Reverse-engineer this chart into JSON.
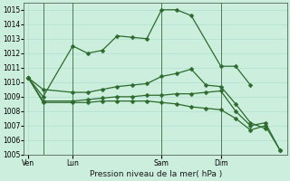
{
  "title": "Pression niveau de la mer( hPa )",
  "bg_color": "#cceedd",
  "grid_color": "#aaddcc",
  "line_color": "#2d6a2d",
  "ylim": [
    1005,
    1015.5
  ],
  "yticks": [
    1005,
    1006,
    1007,
    1008,
    1009,
    1010,
    1011,
    1012,
    1013,
    1014,
    1015
  ],
  "xtick_labels": [
    "Ven",
    "Lun",
    "Sam",
    "Dim"
  ],
  "xtick_positions": [
    0,
    3,
    9,
    13
  ],
  "vline_positions": [
    1,
    3,
    9,
    13
  ],
  "series": [
    {
      "x": [
        0,
        1,
        3,
        4,
        5,
        6,
        7,
        8,
        9,
        10,
        11,
        13,
        14,
        15
      ],
      "y": [
        1010.3,
        1009.0,
        1012.5,
        1012.0,
        1012.2,
        1013.2,
        1013.1,
        1013.0,
        1015.0,
        1015.0,
        1014.6,
        1011.1,
        1011.1,
        1009.8
      ]
    },
    {
      "x": [
        0,
        1,
        3,
        4,
        5,
        6,
        7,
        8,
        9,
        10,
        11,
        12,
        13,
        14,
        15,
        16
      ],
      "y": [
        1010.3,
        1009.5,
        1009.3,
        1009.3,
        1009.5,
        1009.7,
        1009.8,
        1009.9,
        1010.4,
        1010.6,
        1010.9,
        1009.8,
        1009.7,
        1008.5,
        1007.2,
        1006.8
      ]
    },
    {
      "x": [
        0,
        1,
        3,
        4,
        5,
        6,
        7,
        8,
        9,
        10,
        11,
        12,
        13,
        14,
        15,
        16,
        17
      ],
      "y": [
        1010.3,
        1008.7,
        1008.7,
        1008.8,
        1008.9,
        1009.0,
        1009.0,
        1009.1,
        1009.1,
        1009.2,
        1009.2,
        1009.3,
        1009.4,
        1008.0,
        1007.0,
        1007.2,
        1005.3
      ]
    },
    {
      "x": [
        0,
        1,
        3,
        4,
        5,
        6,
        7,
        8,
        9,
        10,
        11,
        12,
        13,
        14,
        15,
        16,
        17
      ],
      "y": [
        1010.3,
        1008.6,
        1008.6,
        1008.6,
        1008.7,
        1008.7,
        1008.7,
        1008.7,
        1008.6,
        1008.5,
        1008.3,
        1008.2,
        1008.1,
        1007.5,
        1006.7,
        1007.0,
        1005.3
      ]
    }
  ],
  "markersize": 2.5,
  "linewidth": 0.9
}
